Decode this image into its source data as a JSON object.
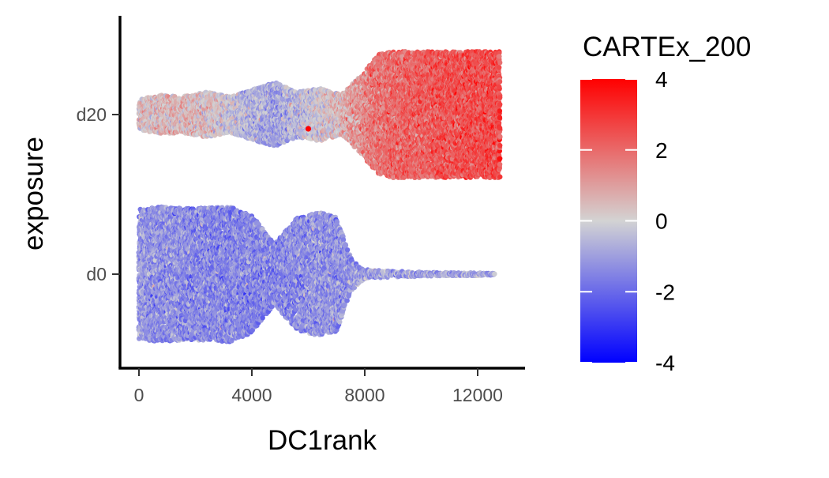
{
  "chart_data": {
    "type": "scatter",
    "subtype": "beeswarm",
    "xlabel": "DC1rank",
    "ylabel": "exposure",
    "xlim": [
      -400,
      13300
    ],
    "x_ticks": [
      0,
      4000,
      8000,
      12000
    ],
    "x_tick_labels": [
      "0",
      "4000",
      "8000",
      "12000"
    ],
    "categories": [
      "d0",
      "d20"
    ],
    "color_variable": "CARTEx_200",
    "color_scale": {
      "min": -4,
      "mid": 0,
      "max": 4,
      "low_color": "#0000FF",
      "mid_color": "#D3D3D3",
      "high_color": "#FF0000",
      "breaks": [
        4,
        2,
        0,
        -2,
        -4
      ],
      "break_labels": [
        "4",
        "2",
        "0",
        "-2",
        "-4"
      ]
    },
    "series": [
      {
        "category": "d20",
        "x": [
          0,
          700,
          1500,
          2400,
          3200,
          4000,
          4800,
          5600,
          6400,
          7200,
          8000,
          8500,
          9000,
          10000,
          11000,
          12000,
          12800
        ],
        "density_width": [
          0.2,
          0.26,
          0.24,
          0.3,
          0.24,
          0.33,
          0.43,
          0.3,
          0.35,
          0.27,
          0.58,
          0.8,
          0.84,
          0.84,
          0.84,
          0.84,
          0.84
        ],
        "mean_score": [
          0.2,
          0.4,
          0.5,
          0.3,
          -0.2,
          -0.6,
          -0.9,
          -0.5,
          -0.1,
          0.6,
          1.4,
          1.8,
          2.0,
          2.2,
          2.4,
          2.5,
          2.6
        ],
        "outlier": {
          "x": 6000,
          "score": 4
        }
      },
      {
        "category": "d0",
        "x": [
          0,
          700,
          1500,
          2400,
          3200,
          4000,
          4800,
          5600,
          6400,
          7000,
          7500,
          8000,
          9000,
          10000,
          11000,
          12000,
          12600
        ],
        "density_width": [
          0.86,
          0.9,
          0.88,
          0.88,
          0.9,
          0.78,
          0.4,
          0.75,
          0.82,
          0.76,
          0.22,
          0.06,
          0.04,
          0.03,
          0.02,
          0.02,
          0.01
        ],
        "mean_score": [
          -1.1,
          -1.2,
          -1.3,
          -1.4,
          -1.4,
          -1.4,
          -1.5,
          -1.3,
          -1.2,
          -1.2,
          -1.1,
          -1.0,
          -1.0,
          -1.0,
          -1.0,
          -1.0,
          -1.0
        ]
      }
    ],
    "grid": false,
    "legend_position": "right"
  }
}
